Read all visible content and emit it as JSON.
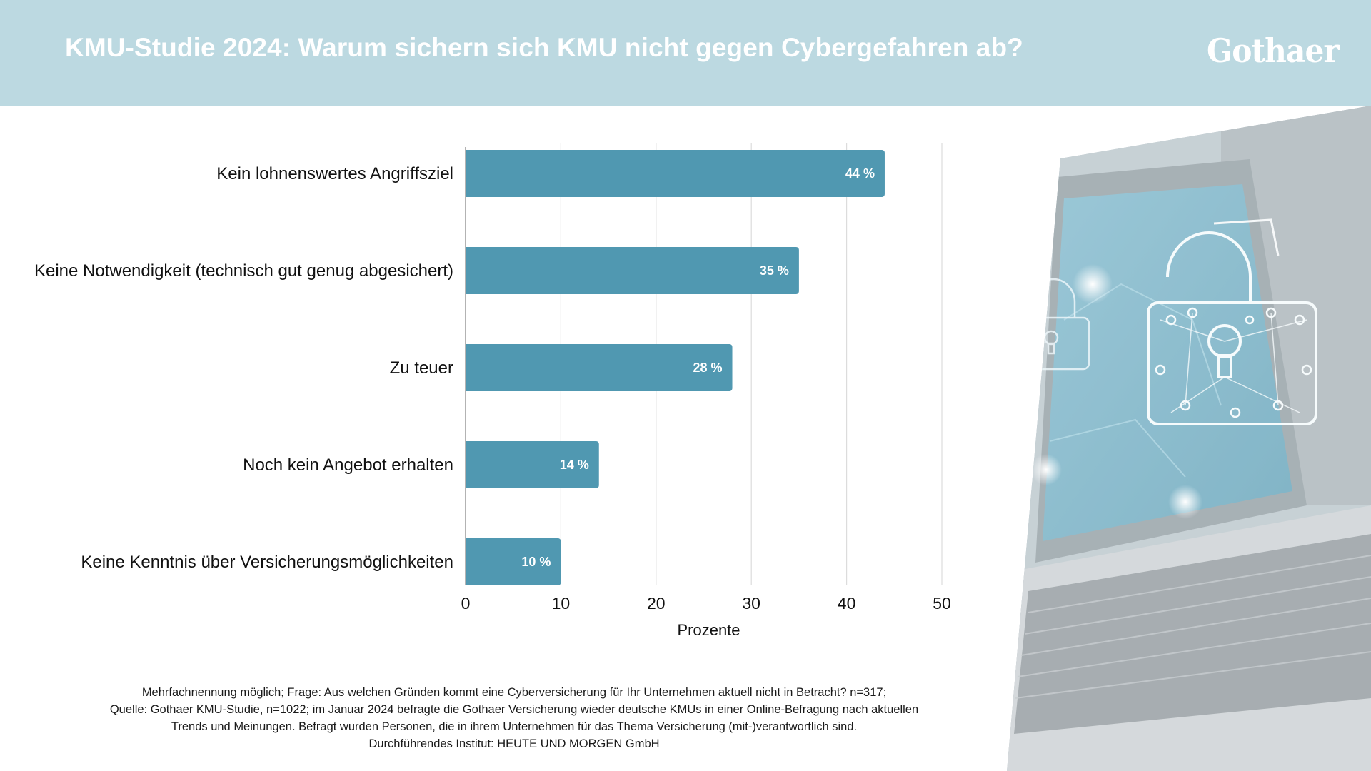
{
  "header": {
    "title": "KMU-Studie 2024: Warum sichern sich KMU nicht gegen Cybergefahren ab?",
    "logo_text": "Gothaer",
    "background_color": "#bcd9e1"
  },
  "chart_data": {
    "type": "bar",
    "orientation": "horizontal",
    "categories": [
      "Kein lohnenswertes Angriffsziel",
      "Keine Notwendigkeit (technisch gut genug abgesichert)",
      "Zu teuer",
      "Noch kein Angebot erhalten",
      "Keine Kenntnis über Versicherungsmöglichkeiten"
    ],
    "values": [
      44,
      35,
      28,
      14,
      10
    ],
    "data_labels": [
      "44 %",
      "35 %",
      "28 %",
      "14 %",
      "10 %"
    ],
    "title": "",
    "xlabel": "Prozente",
    "ylabel": "",
    "xlim": [
      0,
      50
    ],
    "xticks": [
      0,
      10,
      20,
      30,
      40,
      50
    ],
    "grid": "vertical",
    "legend": "none",
    "bar_color": "#5098b1"
  },
  "footnote": {
    "lines": [
      "Mehrfachnennung möglich; Frage: Aus welchen Gründen kommt eine Cyberversicherung für Ihr Unternehmen aktuell nicht in Betracht? n=317;",
      "Quelle: Gothaer KMU-Studie, n=1022; im Januar 2024 befragte die Gothaer Versicherung wieder deutsche KMUs in einer Online-Befragung nach aktuellen",
      "Trends und Meinungen. Befragt wurden Personen, die in ihrem Unternehmen für das Thema Versicherung (mit-)verantwortlich sind.",
      "Durchführendes Institut: HEUTE UND MORGEN GmbH"
    ]
  },
  "image": {
    "description": "laptop-with-cyber-padlock-photo"
  }
}
